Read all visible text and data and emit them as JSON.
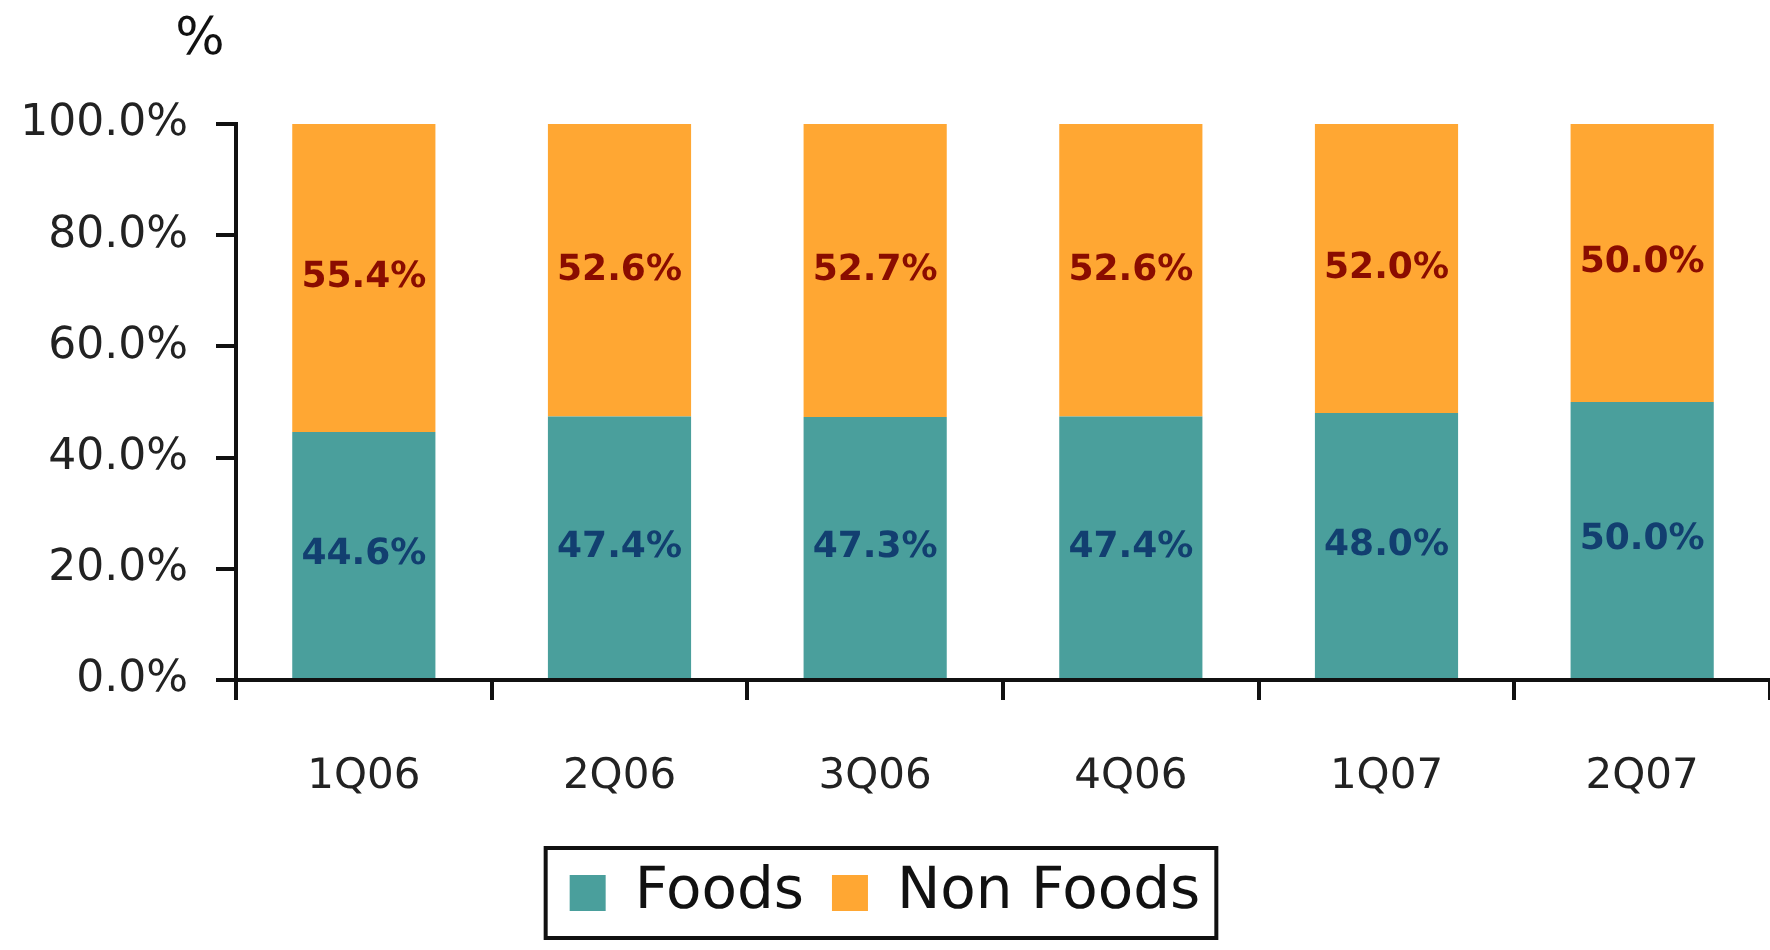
{
  "chart_data": {
    "type": "bar",
    "stacked": true,
    "ylabel": "%",
    "categories": [
      "1Q06",
      "2Q06",
      "3Q06",
      "4Q06",
      "1Q07",
      "2Q07"
    ],
    "series": [
      {
        "name": "Foods",
        "color": "#4a9f9c",
        "values": [
          44.6,
          47.4,
          47.3,
          47.4,
          48.0,
          50.0
        ],
        "value_labels": [
          "44.6%",
          "47.4%",
          "47.3%",
          "47.4%",
          "48.0%",
          "50.0%"
        ]
      },
      {
        "name": "Non Foods",
        "color": "#ffa733",
        "values": [
          55.4,
          52.6,
          52.7,
          52.6,
          52.0,
          50.0
        ],
        "value_labels": [
          "55.4%",
          "52.6%",
          "52.7%",
          "52.6%",
          "52.0%",
          "50.0%"
        ]
      }
    ],
    "ylim": [
      0,
      100
    ],
    "yticks": [
      {
        "value": 0,
        "label": "0.0%"
      },
      {
        "value": 20,
        "label": "20.0%"
      },
      {
        "value": 40,
        "label": "40.0%"
      },
      {
        "value": 60,
        "label": "60.0%"
      },
      {
        "value": 80,
        "label": "80.0%"
      },
      {
        "value": 100,
        "label": "100.0%"
      }
    ],
    "grid": false,
    "legend": "bottom"
  }
}
